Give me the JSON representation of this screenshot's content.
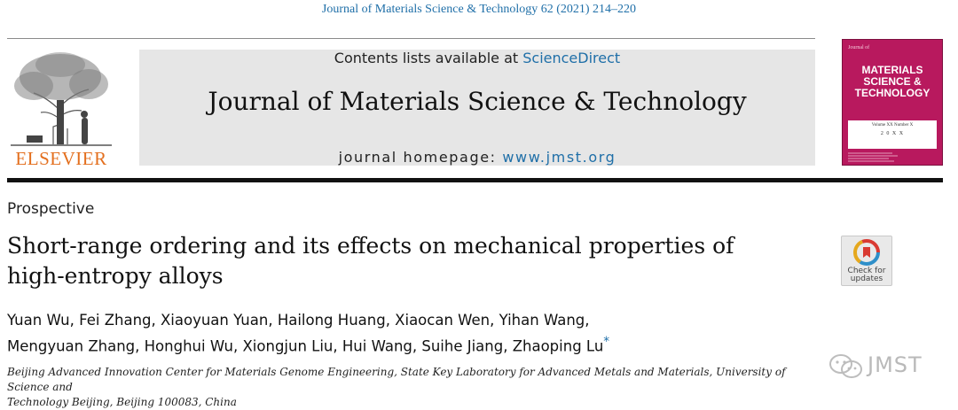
{
  "header": {
    "journal_ref": "Journal of Materials Science & Technology 62 (2021) 214–220",
    "contents_prefix": "Contents lists available at ",
    "contents_link": "ScienceDirect",
    "journal_title": "Journal of Materials Science & Technology",
    "homepage_prefix": "journal homepage: ",
    "homepage_url": "www.jmst.org"
  },
  "publisher": {
    "logo_icon": "elsevier-tree-icon",
    "name": "ELSEVIER",
    "accent_color": "#e36f1e"
  },
  "cover": {
    "small_top": "Journal of",
    "title_lines": [
      "MATERIALS",
      "SCIENCE &",
      "TECHNOLOGY"
    ],
    "volume": "Volume XX  Number X",
    "year": "2 0 X X",
    "color": "#b8195e"
  },
  "article": {
    "type": "Prospective",
    "title_line1": "Short-range ordering and its effects on mechanical properties of",
    "title_line2": "high-entropy alloys",
    "authors_line1": "Yuan Wu, Fei Zhang, Xiaoyuan Yuan, Hailong Huang, Xiaocan Wen, Yihan Wang,",
    "authors_line2": "Mengyuan Zhang, Honghui Wu, Xiongjun Liu, Hui Wang, Suihe Jiang, Zhaoping Lu",
    "corresponding_mark": "*",
    "affiliation_line1": "Beijing Advanced Innovation Center for Materials Genome Engineering, State Key Laboratory for Advanced Metals and Materials, University of Science and",
    "affiliation_line2": "Technology Beijing, Beijing 100083, China"
  },
  "check_updates": {
    "label_line1": "Check for",
    "label_line2": "updates",
    "icon": "check-for-updates-icon"
  },
  "watermark": {
    "text": "JMST",
    "icon": "wechat-icon"
  },
  "colors": {
    "link": "#1f6fa8",
    "masthead_bg": "#e6e6e6"
  }
}
